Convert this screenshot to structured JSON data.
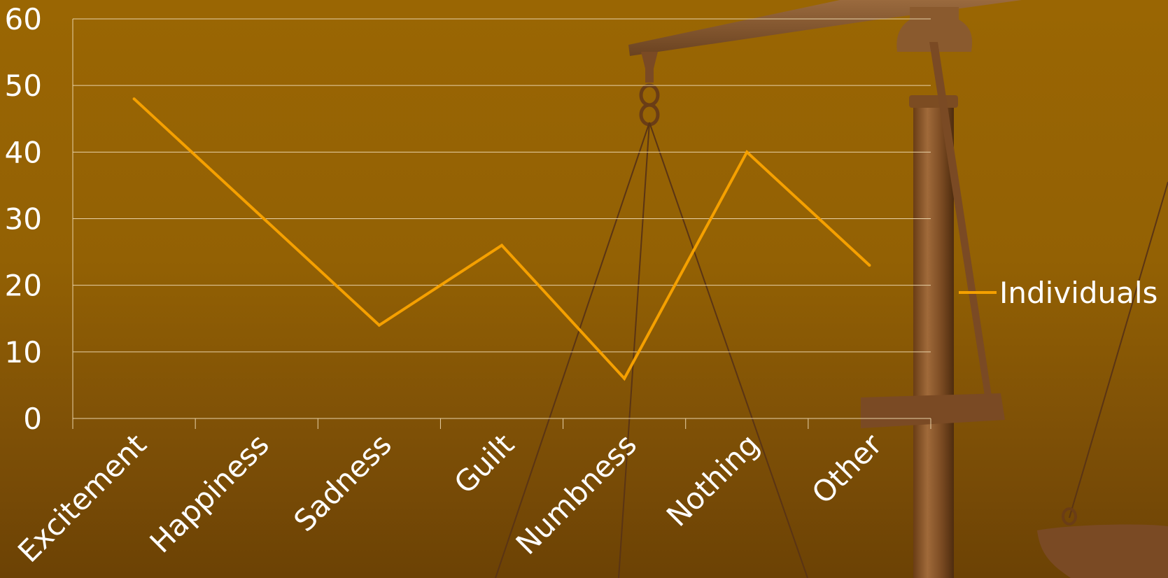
{
  "colors": {
    "line": "#f5a000",
    "gridline": "#e8d2a8",
    "text": "#ffffff",
    "background_top": "#9a6603",
    "background_bottom": "#6c4205"
  },
  "decoration": {
    "background_image": "scales-of-justice"
  },
  "chart_data": {
    "type": "line",
    "title": "",
    "xlabel": "",
    "ylabel": "",
    "categories": [
      "Excitement",
      "Happiness",
      "Sadness",
      "Guilt",
      "Numbness",
      "Nothing",
      "Other"
    ],
    "series": [
      {
        "name": "Individuals",
        "values": [
          48,
          31,
          14,
          26,
          6,
          40,
          23
        ]
      }
    ],
    "ylim": [
      0,
      60
    ],
    "yticks": [
      "0",
      "10",
      "20",
      "30",
      "40",
      "50",
      "60"
    ],
    "grid": true,
    "legend": "right"
  }
}
